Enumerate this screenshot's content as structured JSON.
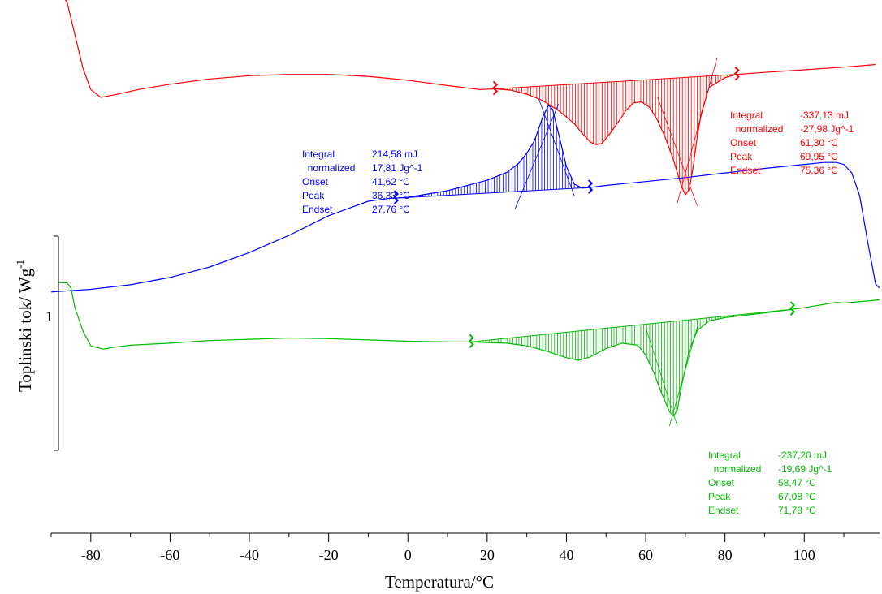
{
  "chart_data": {
    "type": "line",
    "xlabel": "Temperatura/°C",
    "ylabel": "Toplinski tok/ Wg^-1",
    "ylabel_main": "Toplinski tok/ Wg",
    "ylabel_sup": "-1",
    "y_scale_label": "1",
    "xlim": [
      -90,
      119
    ],
    "x_ticks": [
      -80,
      -60,
      -40,
      -20,
      0,
      20,
      40,
      60,
      80,
      100
    ],
    "grid": false,
    "series": [
      {
        "color": "#ff0000",
        "x": [
          -88,
          -86,
          -84,
          -82,
          -80,
          -77.5,
          -74,
          -68,
          -60,
          -50,
          -40,
          -30,
          -20,
          -10,
          0,
          10,
          18,
          22,
          26,
          30,
          34,
          38,
          42,
          44,
          46,
          47.5,
          49,
          51,
          53,
          55,
          57,
          59,
          61,
          63,
          65,
          67,
          68,
          69,
          70,
          71,
          72,
          73,
          74,
          76,
          80,
          83,
          90,
          100,
          110,
          118
        ],
        "y": [
          1.6,
          1.45,
          0.95,
          0.45,
          0.12,
          0.0,
          0.04,
          0.12,
          0.2,
          0.28,
          0.33,
          0.35,
          0.35,
          0.32,
          0.26,
          0.18,
          0.12,
          0.13,
          0.11,
          0.05,
          -0.05,
          -0.2,
          -0.4,
          -0.55,
          -0.68,
          -0.72,
          -0.7,
          -0.55,
          -0.38,
          -0.2,
          -0.08,
          -0.07,
          -0.15,
          -0.35,
          -0.62,
          -0.95,
          -1.15,
          -1.35,
          -1.48,
          -1.4,
          -1.05,
          -0.6,
          -0.25,
          0.15,
          0.3,
          0.35,
          0.38,
          0.42,
          0.46,
          0.5
        ]
      },
      {
        "color": "#0000ff",
        "x": [
          -90,
          -80,
          -70,
          -60,
          -50,
          -40,
          -30,
          -20,
          -10,
          -5,
          0,
          10,
          20,
          25,
          28,
          30,
          32,
          34,
          35.5,
          36.5,
          38,
          40,
          42,
          44,
          46,
          50,
          60,
          70,
          80,
          90,
          100,
          105,
          108,
          110,
          112,
          114,
          116,
          118,
          119
        ],
        "y": [
          -2.96,
          -2.92,
          -2.85,
          -2.74,
          -2.58,
          -2.36,
          -2.1,
          -1.8,
          -1.58,
          -1.54,
          -1.52,
          -1.42,
          -1.26,
          -1.14,
          -1.0,
          -0.85,
          -0.65,
          -0.3,
          -0.12,
          -0.18,
          -0.55,
          -1.05,
          -1.32,
          -1.38,
          -1.37,
          -1.34,
          -1.28,
          -1.22,
          -1.15,
          -1.08,
          -1.02,
          -0.99,
          -0.99,
          -1.02,
          -1.15,
          -1.5,
          -2.2,
          -2.84,
          -2.9
        ]
      },
      {
        "color": "#00bb00",
        "x": [
          -88,
          -86,
          -85,
          -84,
          -82,
          -80,
          -77,
          -74,
          -70,
          -60,
          -50,
          -40,
          -30,
          -20,
          -10,
          0,
          10,
          16,
          20,
          25,
          30,
          35,
          40,
          43,
          46,
          50,
          54,
          58,
          60,
          62,
          64,
          66,
          67,
          68,
          69,
          71,
          73,
          76,
          80,
          90,
          100,
          108,
          110,
          119
        ],
        "y": [
          -2.82,
          -2.82,
          -2.9,
          -3.2,
          -3.55,
          -3.78,
          -3.83,
          -3.8,
          -3.77,
          -3.74,
          -3.7,
          -3.68,
          -3.66,
          -3.67,
          -3.69,
          -3.71,
          -3.72,
          -3.72,
          -3.73,
          -3.74,
          -3.78,
          -3.86,
          -3.96,
          -4.0,
          -3.95,
          -3.82,
          -3.74,
          -3.77,
          -3.92,
          -4.18,
          -4.5,
          -4.78,
          -4.85,
          -4.75,
          -4.4,
          -3.85,
          -3.55,
          -3.4,
          -3.35,
          -3.28,
          -3.2,
          -3.12,
          -3.13,
          -3.08
        ]
      }
    ],
    "annotations": [
      {
        "color": "#ff0000",
        "rows": [
          {
            "label": "Integral",
            "value": "-337,13 mJ"
          },
          {
            "label": "  normalized",
            "value": "-27,98 Jg^-1"
          },
          {
            "label": "Onset",
            "value": "61,30 °C"
          },
          {
            "label": "Peak",
            "value": "69,95 °C"
          },
          {
            "label": "Endset",
            "value": "75,36 °C"
          }
        ]
      },
      {
        "color": "#0000ff",
        "rows": [
          {
            "label": "Integral",
            "value": "214,58 mJ"
          },
          {
            "label": "  normalized",
            "value": "17,81 Jg^-1"
          },
          {
            "label": "Onset",
            "value": "41,62 °C"
          },
          {
            "label": "Peak",
            "value": "36,33 °C"
          },
          {
            "label": "Endset",
            "value": "27,76 °C"
          }
        ]
      },
      {
        "color": "#00bb00",
        "rows": [
          {
            "label": "Integral",
            "value": "-237,20 mJ"
          },
          {
            "label": "  normalized",
            "value": "-19,69 Jg^-1"
          },
          {
            "label": "Onset",
            "value": "58,47 °C"
          },
          {
            "label": "Peak",
            "value": "67,08 °C"
          },
          {
            "label": "Endset",
            "value": "71,78 °C"
          }
        ]
      }
    ]
  }
}
